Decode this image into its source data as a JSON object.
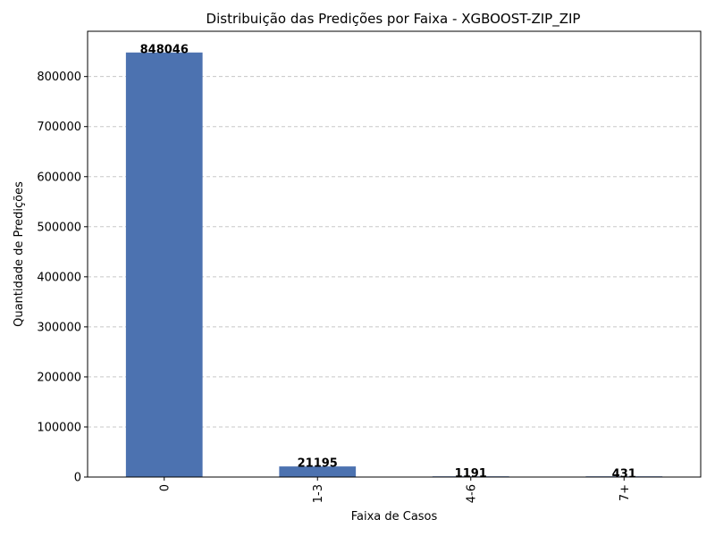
{
  "chart_data": {
    "type": "bar",
    "title": "Distribuição das Predições por Faixa - XGBOOST-ZIP_ZIP",
    "xlabel": "Faixa de Casos",
    "ylabel": "Quantidade de Predições",
    "categories": [
      "0",
      "1-3",
      "4-6",
      "7+"
    ],
    "values": [
      848046,
      21195,
      1191,
      431
    ],
    "data_labels": [
      "848046",
      "21195",
      "1191",
      "431"
    ],
    "ylim": [
      0,
      848046
    ],
    "yticks": [
      0,
      100000,
      200000,
      300000,
      400000,
      500000,
      600000,
      700000,
      800000
    ],
    "ytick_labels": [
      "0",
      "100000",
      "200000",
      "300000",
      "400000",
      "500000",
      "600000",
      "700000",
      "800000"
    ],
    "grid": "horizontal-dashed",
    "bar_color": "#4c72b0",
    "grid_color": "#c8c8c8"
  }
}
